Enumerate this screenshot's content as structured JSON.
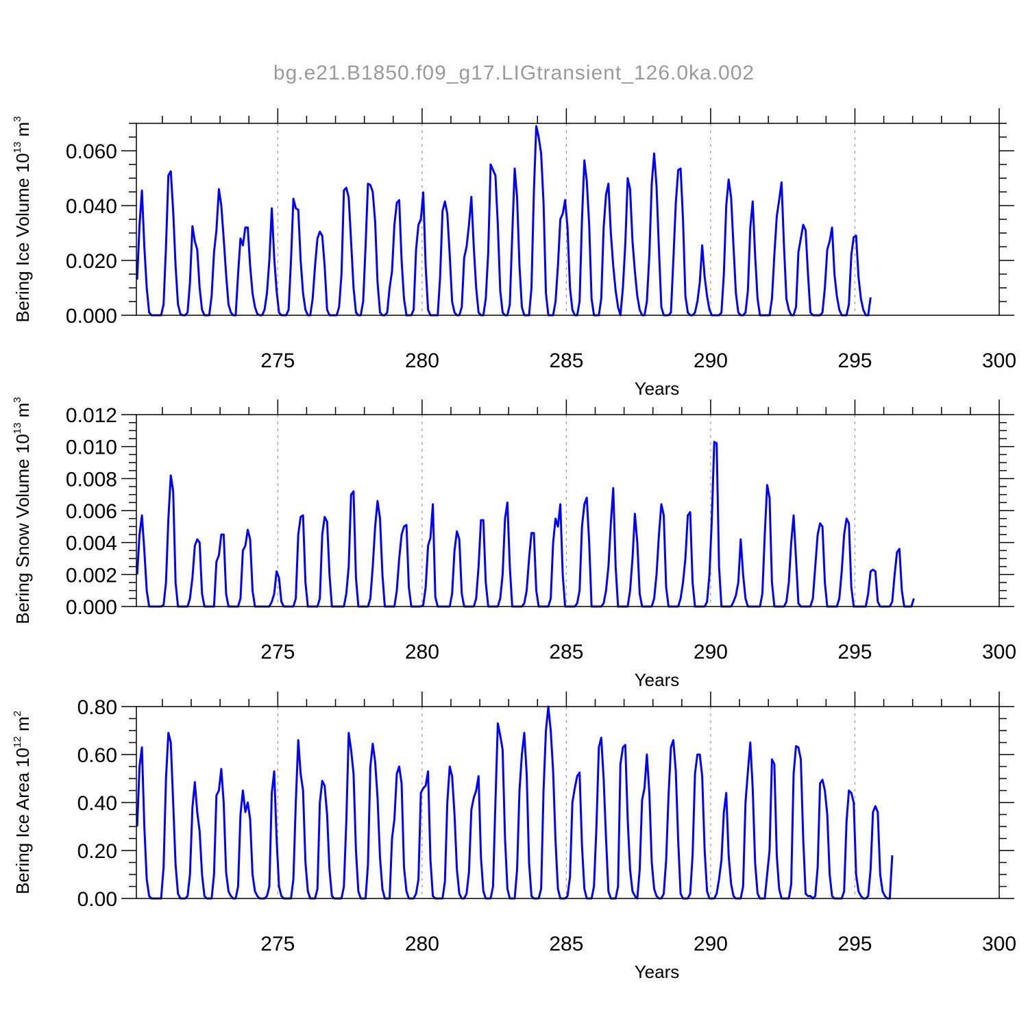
{
  "title": "bg.e21.B1850.f09_g17.LIGtransient_126.0ka.002",
  "line_color": "#0000ff",
  "chart_data": [
    {
      "type": "line",
      "name": "ice-volume",
      "xlabel": "Years",
      "ylabel": {
        "main": "Bering Ice Volume 10",
        "exp": "13",
        "unit": " m",
        "unit_exp": "3"
      },
      "xlim": [
        270.1,
        300.0
      ],
      "ylim": [
        0.0,
        0.07
      ],
      "xticks": [
        275,
        280,
        285,
        290,
        295,
        300
      ],
      "xtick_labels": [
        "275",
        "280",
        "285",
        "290",
        "295",
        "300"
      ],
      "yticks": [
        0.0,
        0.02,
        0.04,
        0.06
      ],
      "ytick_labels": [
        "0.000",
        "0.020",
        "0.040",
        "0.060"
      ],
      "grid": "vertical-dashed",
      "x_start": 270.125,
      "x_step": 0.0833333,
      "y": [
        0.013,
        0.033,
        0.0455,
        0.025,
        0.01,
        0.001,
        0,
        0,
        0,
        0,
        0,
        0.004,
        0.025,
        0.051,
        0.0525,
        0.038,
        0.018,
        0.004,
        0.0005,
        0,
        0,
        0.001,
        0.012,
        0.0325,
        0.027,
        0.024,
        0.01,
        0.002,
        0,
        0,
        0,
        0.007,
        0.023,
        0.031,
        0.046,
        0.04,
        0.028,
        0.015,
        0.004,
        0.001,
        0,
        0,
        0.015,
        0.028,
        0.0255,
        0.032,
        0.032,
        0.018,
        0.008,
        0.003,
        0.0005,
        0,
        0,
        0.002,
        0.008,
        0.02,
        0.039,
        0.021,
        0.009,
        0.001,
        0,
        0,
        0,
        0.002,
        0.02,
        0.0425,
        0.039,
        0.0385,
        0.02,
        0.008,
        0.002,
        0,
        0,
        0.006,
        0.018,
        0.028,
        0.0305,
        0.029,
        0.018,
        0.002,
        0,
        0,
        0,
        0,
        0.003,
        0.015,
        0.0455,
        0.0465,
        0.043,
        0.027,
        0.01,
        0.001,
        0,
        0,
        0.005,
        0.025,
        0.048,
        0.0475,
        0.045,
        0.034,
        0.012,
        0.001,
        0,
        0,
        0.001,
        0.01,
        0.016,
        0.033,
        0.041,
        0.042,
        0.02,
        0.006,
        0,
        0,
        0,
        0.002,
        0.024,
        0.033,
        0.035,
        0.0448,
        0.018,
        0.002,
        0,
        0,
        0,
        0,
        0.014,
        0.038,
        0.0415,
        0.037,
        0.022,
        0.005,
        0.001,
        0,
        0,
        0.003,
        0.021,
        0.025,
        0.033,
        0.0432,
        0.025,
        0.01,
        0.001,
        0,
        0,
        0.006,
        0.023,
        0.055,
        0.053,
        0.051,
        0.033,
        0.009,
        0.001,
        0,
        0,
        0.004,
        0.029,
        0.0535,
        0.043,
        0.018,
        0.003,
        0,
        0,
        0,
        0.01,
        0.045,
        0.069,
        0.065,
        0.059,
        0.041,
        0.008,
        0,
        0,
        0,
        0.005,
        0.018,
        0.035,
        0.037,
        0.042,
        0.032,
        0.01,
        0.002,
        0,
        0,
        0.005,
        0.035,
        0.0565,
        0.049,
        0.033,
        0.006,
        0,
        0,
        0,
        0.006,
        0.032,
        0.044,
        0.048,
        0.03,
        0.018,
        0.009,
        0.003,
        0,
        0.01,
        0.026,
        0.05,
        0.046,
        0.027,
        0.016,
        0.007,
        0.002,
        0,
        0,
        0.005,
        0.022,
        0.048,
        0.059,
        0.047,
        0.024,
        0.003,
        0,
        0,
        0,
        0.001,
        0.02,
        0.041,
        0.053,
        0.0535,
        0.035,
        0.007,
        0.001,
        0,
        0,
        0.001,
        0.005,
        0.012,
        0.0255,
        0.014,
        0.007,
        0.002,
        0,
        0,
        0,
        0,
        0.001,
        0.015,
        0.04,
        0.0495,
        0.043,
        0.025,
        0.008,
        0.001,
        0,
        0,
        0.001,
        0.009,
        0.032,
        0.0415,
        0.022,
        0.006,
        0,
        0,
        0,
        0,
        0,
        0.006,
        0.022,
        0.036,
        0.042,
        0.0485,
        0.025,
        0.006,
        0.002,
        0,
        0,
        0.003,
        0.023,
        0.028,
        0.033,
        0.031,
        0.015,
        0.001,
        0,
        0,
        0,
        0,
        0.001,
        0.01,
        0.024,
        0.027,
        0.032,
        0.015,
        0.007,
        0.002,
        0,
        0,
        0,
        0.004,
        0.022,
        0.0285,
        0.029,
        0.014,
        0.006,
        0.002,
        0,
        0,
        0.0065
      ]
    },
    {
      "type": "line",
      "name": "snow-volume",
      "xlabel": "Years",
      "ylabel": {
        "main": "Bering Snow Volume 10",
        "exp": "13",
        "unit": " m",
        "unit_exp": "3"
      },
      "xlim": [
        270.1,
        300.0
      ],
      "ylim": [
        0.0,
        0.012
      ],
      "xticks": [
        275,
        280,
        285,
        290,
        295,
        300
      ],
      "xtick_labels": [
        "275",
        "280",
        "285",
        "290",
        "295",
        "300"
      ],
      "yticks": [
        0.0,
        0.002,
        0.004,
        0.006,
        0.008,
        0.01,
        0.012
      ],
      "ytick_labels": [
        "0.000",
        "0.002",
        "0.004",
        "0.006",
        "0.008",
        "0.010",
        "0.012"
      ],
      "grid": "vertical-dashed",
      "x_start": 270.125,
      "x_step": 0.0833333,
      "y": [
        0.002,
        0.0045,
        0.0057,
        0.0035,
        0.001,
        0,
        0,
        0,
        0,
        0,
        0,
        0.0001,
        0.0015,
        0.0055,
        0.0082,
        0.0072,
        0.0015,
        0,
        0,
        0,
        0,
        0,
        0.0005,
        0.0018,
        0.0038,
        0.0042,
        0.004,
        0.0008,
        0,
        0,
        0,
        0,
        0,
        0.0028,
        0.0032,
        0.0045,
        0.0045,
        0.0008,
        0,
        0,
        0,
        0,
        0,
        0.0005,
        0.0035,
        0.0038,
        0.0048,
        0.0042,
        0.001,
        0,
        0,
        0,
        0,
        0,
        0,
        0,
        0.0003,
        0.0008,
        0.0022,
        0.0018,
        0.0003,
        0,
        0,
        0,
        0,
        0,
        0.0005,
        0.0045,
        0.0056,
        0.0057,
        0.0015,
        0,
        0,
        0,
        0,
        0,
        0.0005,
        0.0045,
        0.0056,
        0.0053,
        0.002,
        0,
        0,
        0,
        0,
        0,
        0,
        0.0008,
        0.0025,
        0.007,
        0.0072,
        0.0018,
        0,
        0,
        0,
        0,
        0,
        0.0005,
        0.0025,
        0.005,
        0.0066,
        0.0055,
        0.002,
        0,
        0,
        0,
        0,
        0,
        0.001,
        0.003,
        0.0045,
        0.005,
        0.0051,
        0.0012,
        0,
        0,
        0,
        0,
        0,
        0.0001,
        0.0012,
        0.0038,
        0.0043,
        0.0064,
        0.0006,
        0,
        0,
        0,
        0,
        0,
        0,
        0.0008,
        0.0035,
        0.0047,
        0.0042,
        0.0008,
        0,
        0,
        0,
        0,
        0,
        0.0005,
        0.0025,
        0.0054,
        0.0054,
        0.0015,
        0,
        0,
        0,
        0,
        0,
        0.0005,
        0.002,
        0.0055,
        0.0065,
        0.0025,
        0,
        0,
        0,
        0,
        0,
        0.0002,
        0.001,
        0.003,
        0.0046,
        0.0046,
        0.001,
        0,
        0,
        0,
        0,
        0,
        0.0005,
        0.004,
        0.0055,
        0.005,
        0.0064,
        0.002,
        0,
        0,
        0,
        0,
        0,
        0.0002,
        0.001,
        0.005,
        0.0064,
        0.0068,
        0.004,
        0,
        0,
        0,
        0,
        0,
        0.0002,
        0.001,
        0.0025,
        0.0052,
        0.0074,
        0.0025,
        0,
        0,
        0,
        0,
        0,
        0.001,
        0.003,
        0.0058,
        0.004,
        0.0008,
        0,
        0,
        0,
        0,
        0,
        0.0005,
        0.002,
        0.0045,
        0.0064,
        0.0057,
        0.0012,
        0,
        0,
        0,
        0,
        0,
        0.0005,
        0.0015,
        0.003,
        0.0057,
        0.0059,
        0.0015,
        0,
        0,
        0,
        0,
        0,
        0.0003,
        0.002,
        0.0055,
        0.0103,
        0.0102,
        0.0025,
        0,
        0,
        0,
        0,
        0,
        0.0003,
        0.0007,
        0.0015,
        0.0042,
        0.002,
        0.0005,
        0,
        0,
        0,
        0,
        0,
        0,
        0.0008,
        0.0045,
        0.0076,
        0.0068,
        0.0015,
        0,
        0,
        0,
        0,
        0,
        0.0003,
        0.0015,
        0.004,
        0.0057,
        0.003,
        0.0002,
        0,
        0,
        0,
        0,
        0,
        0.0005,
        0.0025,
        0.0045,
        0.0052,
        0.005,
        0.0015,
        0,
        0,
        0,
        0,
        0,
        0.0005,
        0.0022,
        0.0045,
        0.0055,
        0.0052,
        0.0012,
        0,
        0,
        0,
        0,
        0,
        0,
        0.0008,
        0.0022,
        0.0023,
        0.0022,
        0.0003,
        0,
        0,
        0,
        0,
        0,
        0.0003,
        0.002,
        0.0034,
        0.0036,
        0.001,
        0,
        0,
        0,
        0,
        0.0005
      ]
    },
    {
      "type": "line",
      "name": "ice-area",
      "xlabel": "Years",
      "ylabel": {
        "main": "Bering Ice Area 10",
        "exp": "12",
        "unit": " m",
        "unit_exp": "2"
      },
      "xlim": [
        270.1,
        300.0
      ],
      "ylim": [
        0.0,
        0.8
      ],
      "xticks": [
        275,
        280,
        285,
        290,
        295,
        300
      ],
      "xtick_labels": [
        "275",
        "280",
        "285",
        "290",
        "295",
        "300"
      ],
      "yticks": [
        0.0,
        0.2,
        0.4,
        0.6,
        0.8
      ],
      "ytick_labels": [
        "0.00",
        "0.20",
        "0.40",
        "0.60",
        "0.80"
      ],
      "grid": "vertical-dashed",
      "x_start": 270.125,
      "x_step": 0.0833333,
      "y": [
        0.3,
        0.55,
        0.63,
        0.3,
        0.08,
        0.01,
        0,
        0,
        0,
        0,
        0,
        0.13,
        0.5,
        0.69,
        0.65,
        0.4,
        0.14,
        0.02,
        0,
        0,
        0,
        0.01,
        0.1,
        0.38,
        0.485,
        0.36,
        0.28,
        0.1,
        0.01,
        0,
        0,
        0,
        0.1,
        0.43,
        0.45,
        0.54,
        0.4,
        0.11,
        0.03,
        0.01,
        0,
        0,
        0.05,
        0.35,
        0.45,
        0.36,
        0.4,
        0.33,
        0.1,
        0.03,
        0.01,
        0,
        0,
        0,
        0.01,
        0.05,
        0.44,
        0.53,
        0.25,
        0.05,
        0.01,
        0,
        0,
        0,
        0,
        0.08,
        0.4,
        0.66,
        0.52,
        0.45,
        0.15,
        0.03,
        0,
        0,
        0,
        0.04,
        0.4,
        0.49,
        0.47,
        0.35,
        0.12,
        0.01,
        0,
        0,
        0,
        0,
        0.05,
        0.32,
        0.69,
        0.62,
        0.52,
        0.2,
        0.03,
        0,
        0,
        0,
        0.14,
        0.55,
        0.645,
        0.57,
        0.42,
        0.17,
        0.04,
        0,
        0,
        0,
        0.25,
        0.33,
        0.52,
        0.55,
        0.48,
        0.13,
        0.03,
        0,
        0,
        0,
        0.02,
        0.08,
        0.44,
        0.46,
        0.47,
        0.53,
        0.16,
        0.01,
        0,
        0,
        0,
        0,
        0.07,
        0.4,
        0.55,
        0.51,
        0.35,
        0.12,
        0.02,
        0,
        0,
        0.02,
        0.11,
        0.37,
        0.42,
        0.45,
        0.51,
        0.17,
        0.03,
        0,
        0,
        0,
        0.05,
        0.4,
        0.73,
        0.68,
        0.62,
        0.25,
        0.04,
        0,
        0,
        0,
        0.12,
        0.45,
        0.6,
        0.69,
        0.52,
        0.15,
        0.01,
        0,
        0,
        0,
        0.04,
        0.45,
        0.7,
        0.8,
        0.7,
        0.53,
        0.24,
        0.04,
        0,
        0,
        0,
        0.01,
        0.09,
        0.4,
        0.46,
        0.51,
        0.525,
        0.22,
        0.04,
        0,
        0,
        0,
        0.05,
        0.3,
        0.63,
        0.67,
        0.5,
        0.25,
        0.03,
        0,
        0,
        0,
        0.05,
        0.56,
        0.63,
        0.64,
        0.33,
        0.12,
        0.03,
        0.01,
        0,
        0.12,
        0.41,
        0.46,
        0.6,
        0.44,
        0.15,
        0.04,
        0.01,
        0,
        0,
        0.02,
        0.16,
        0.43,
        0.63,
        0.66,
        0.53,
        0.24,
        0.02,
        0,
        0,
        0,
        0.02,
        0.18,
        0.52,
        0.6,
        0.6,
        0.51,
        0.2,
        0.03,
        0,
        0,
        0,
        0.02,
        0.08,
        0.16,
        0.36,
        0.44,
        0.18,
        0.06,
        0.01,
        0,
        0,
        0,
        0.05,
        0.4,
        0.53,
        0.65,
        0.46,
        0.15,
        0.02,
        0,
        0,
        0,
        0.1,
        0.2,
        0.58,
        0.56,
        0.18,
        0.04,
        0,
        0,
        0,
        0,
        0.06,
        0.52,
        0.635,
        0.63,
        0.58,
        0.25,
        0.02,
        0.01,
        0.01,
        0,
        0.01,
        0.13,
        0.48,
        0.495,
        0.45,
        0.35,
        0.1,
        0.01,
        0,
        0,
        0,
        0,
        0.03,
        0.32,
        0.45,
        0.44,
        0.4,
        0.1,
        0.03,
        0.01,
        0,
        0,
        0.01,
        0.12,
        0.36,
        0.385,
        0.36,
        0.1,
        0.03,
        0.01,
        0,
        0,
        0.18
      ]
    }
  ]
}
